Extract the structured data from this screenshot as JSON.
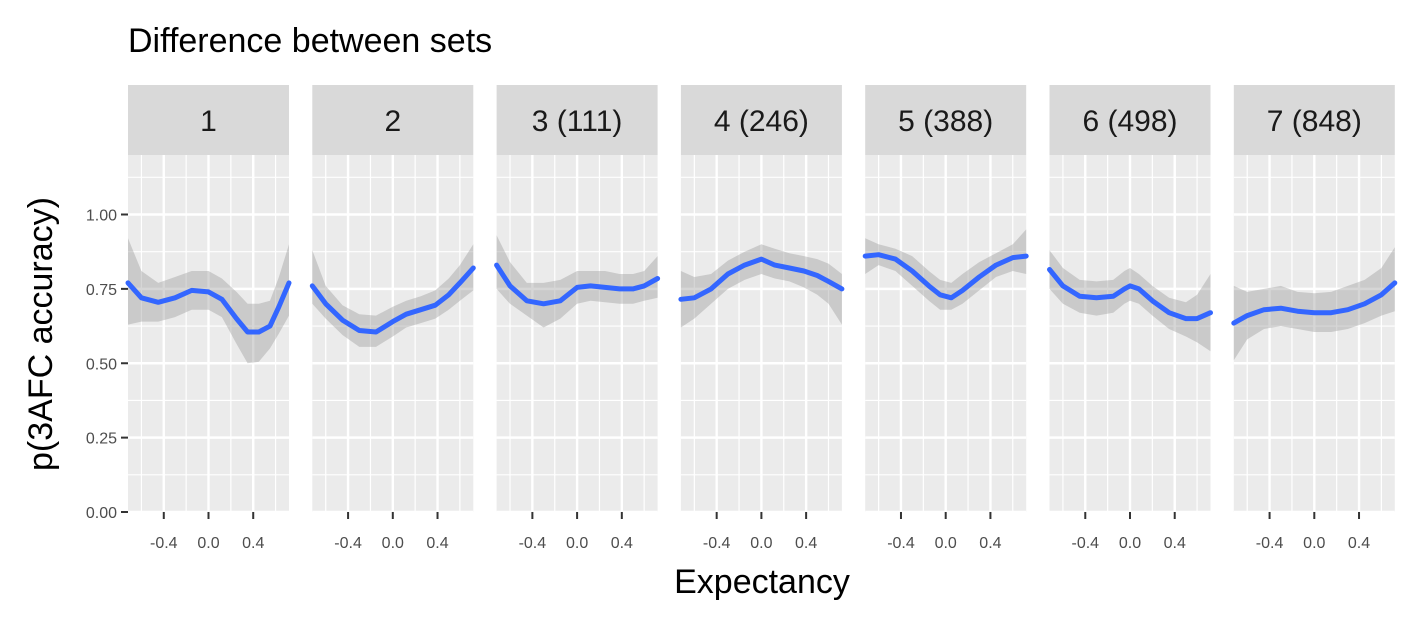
{
  "chart_data": {
    "type": "line",
    "title": "Difference between sets",
    "xlabel": "Expectancy",
    "ylabel": "p(3AFC accuracy)",
    "ylim": [
      0,
      1.2
    ],
    "xlim": [
      -0.72,
      0.72
    ],
    "y_ticks": [
      0.0,
      0.25,
      0.5,
      0.75,
      1.0
    ],
    "y_tick_labels": [
      "0.00",
      "0.25",
      "0.50",
      "0.75",
      "1.00"
    ],
    "x_ticks": [
      -0.4,
      0.0,
      0.4
    ],
    "x_tick_labels": [
      "-0.4",
      "0.0",
      "0.4"
    ],
    "grid": true,
    "line_color": "#3366ff",
    "ribbon_color": "#999999",
    "panel_background": "#ebebeb",
    "strip_background": "#d9d9d9",
    "panels": [
      {
        "label": "1",
        "x": [
          -0.72,
          -0.6,
          -0.45,
          -0.3,
          -0.15,
          0.0,
          0.12,
          0.25,
          0.35,
          0.45,
          0.55,
          0.63,
          0.72
        ],
        "y": [
          0.77,
          0.72,
          0.705,
          0.72,
          0.745,
          0.74,
          0.715,
          0.65,
          0.605,
          0.605,
          0.625,
          0.69,
          0.77
        ],
        "ymin": [
          0.63,
          0.64,
          0.64,
          0.655,
          0.68,
          0.68,
          0.655,
          0.565,
          0.5,
          0.505,
          0.55,
          0.6,
          0.66
        ],
        "ymax": [
          0.92,
          0.81,
          0.77,
          0.79,
          0.81,
          0.81,
          0.785,
          0.74,
          0.7,
          0.7,
          0.71,
          0.79,
          0.9
        ]
      },
      {
        "label": "2",
        "x": [
          -0.72,
          -0.6,
          -0.45,
          -0.3,
          -0.15,
          0.0,
          0.12,
          0.25,
          0.38,
          0.5,
          0.6,
          0.72
        ],
        "y": [
          0.76,
          0.7,
          0.645,
          0.61,
          0.605,
          0.64,
          0.665,
          0.68,
          0.695,
          0.73,
          0.77,
          0.82
        ],
        "ymin": [
          0.7,
          0.65,
          0.595,
          0.555,
          0.555,
          0.59,
          0.62,
          0.635,
          0.65,
          0.68,
          0.71,
          0.745
        ],
        "ymax": [
          0.88,
          0.76,
          0.695,
          0.665,
          0.66,
          0.69,
          0.71,
          0.725,
          0.745,
          0.785,
          0.83,
          0.9
        ]
      },
      {
        "label": "3 (111)",
        "x": [
          -0.72,
          -0.6,
          -0.45,
          -0.3,
          -0.15,
          0.0,
          0.12,
          0.25,
          0.38,
          0.5,
          0.6,
          0.72
        ],
        "y": [
          0.83,
          0.76,
          0.71,
          0.7,
          0.71,
          0.755,
          0.76,
          0.755,
          0.75,
          0.75,
          0.76,
          0.785
        ],
        "ymin": [
          0.75,
          0.7,
          0.66,
          0.62,
          0.65,
          0.7,
          0.71,
          0.705,
          0.7,
          0.7,
          0.71,
          0.72
        ],
        "ymax": [
          0.93,
          0.84,
          0.77,
          0.77,
          0.78,
          0.81,
          0.81,
          0.81,
          0.8,
          0.8,
          0.81,
          0.86
        ]
      },
      {
        "label": "4 (246)",
        "x": [
          -0.72,
          -0.6,
          -0.45,
          -0.3,
          -0.15,
          0.0,
          0.12,
          0.25,
          0.38,
          0.5,
          0.6,
          0.72
        ],
        "y": [
          0.715,
          0.72,
          0.75,
          0.8,
          0.83,
          0.85,
          0.83,
          0.82,
          0.81,
          0.795,
          0.775,
          0.75
        ],
        "ymin": [
          0.62,
          0.65,
          0.7,
          0.75,
          0.78,
          0.8,
          0.785,
          0.775,
          0.755,
          0.73,
          0.7,
          0.63
        ],
        "ymax": [
          0.81,
          0.79,
          0.8,
          0.845,
          0.875,
          0.9,
          0.885,
          0.87,
          0.86,
          0.85,
          0.835,
          0.8
        ]
      },
      {
        "label": "5 (388)",
        "x": [
          -0.72,
          -0.6,
          -0.45,
          -0.3,
          -0.15,
          -0.05,
          0.05,
          0.15,
          0.3,
          0.45,
          0.6,
          0.72
        ],
        "y": [
          0.86,
          0.865,
          0.85,
          0.81,
          0.76,
          0.73,
          0.72,
          0.745,
          0.79,
          0.83,
          0.855,
          0.86
        ],
        "ymin": [
          0.8,
          0.83,
          0.81,
          0.76,
          0.71,
          0.68,
          0.68,
          0.7,
          0.745,
          0.79,
          0.81,
          0.8
        ],
        "ymax": [
          0.92,
          0.9,
          0.885,
          0.86,
          0.81,
          0.78,
          0.77,
          0.8,
          0.84,
          0.87,
          0.9,
          0.95
        ]
      },
      {
        "label": "6 (498)",
        "x": [
          -0.72,
          -0.6,
          -0.45,
          -0.3,
          -0.15,
          -0.05,
          0.0,
          0.08,
          0.2,
          0.35,
          0.5,
          0.6,
          0.72
        ],
        "y": [
          0.815,
          0.76,
          0.725,
          0.72,
          0.725,
          0.75,
          0.76,
          0.75,
          0.71,
          0.67,
          0.65,
          0.65,
          0.67
        ],
        "ymin": [
          0.75,
          0.7,
          0.67,
          0.66,
          0.67,
          0.7,
          0.71,
          0.7,
          0.66,
          0.615,
          0.59,
          0.57,
          0.54
        ],
        "ymax": [
          0.88,
          0.82,
          0.78,
          0.775,
          0.78,
          0.81,
          0.82,
          0.8,
          0.76,
          0.72,
          0.705,
          0.73,
          0.8
        ]
      },
      {
        "label": "7 (848)",
        "x": [
          -0.72,
          -0.6,
          -0.45,
          -0.3,
          -0.15,
          0.0,
          0.15,
          0.3,
          0.45,
          0.6,
          0.72
        ],
        "y": [
          0.635,
          0.66,
          0.68,
          0.685,
          0.675,
          0.67,
          0.67,
          0.68,
          0.7,
          0.73,
          0.77
        ],
        "ymin": [
          0.51,
          0.58,
          0.615,
          0.625,
          0.615,
          0.605,
          0.605,
          0.615,
          0.635,
          0.66,
          0.675
        ],
        "ymax": [
          0.76,
          0.74,
          0.75,
          0.76,
          0.74,
          0.735,
          0.74,
          0.76,
          0.78,
          0.82,
          0.89
        ]
      }
    ]
  }
}
